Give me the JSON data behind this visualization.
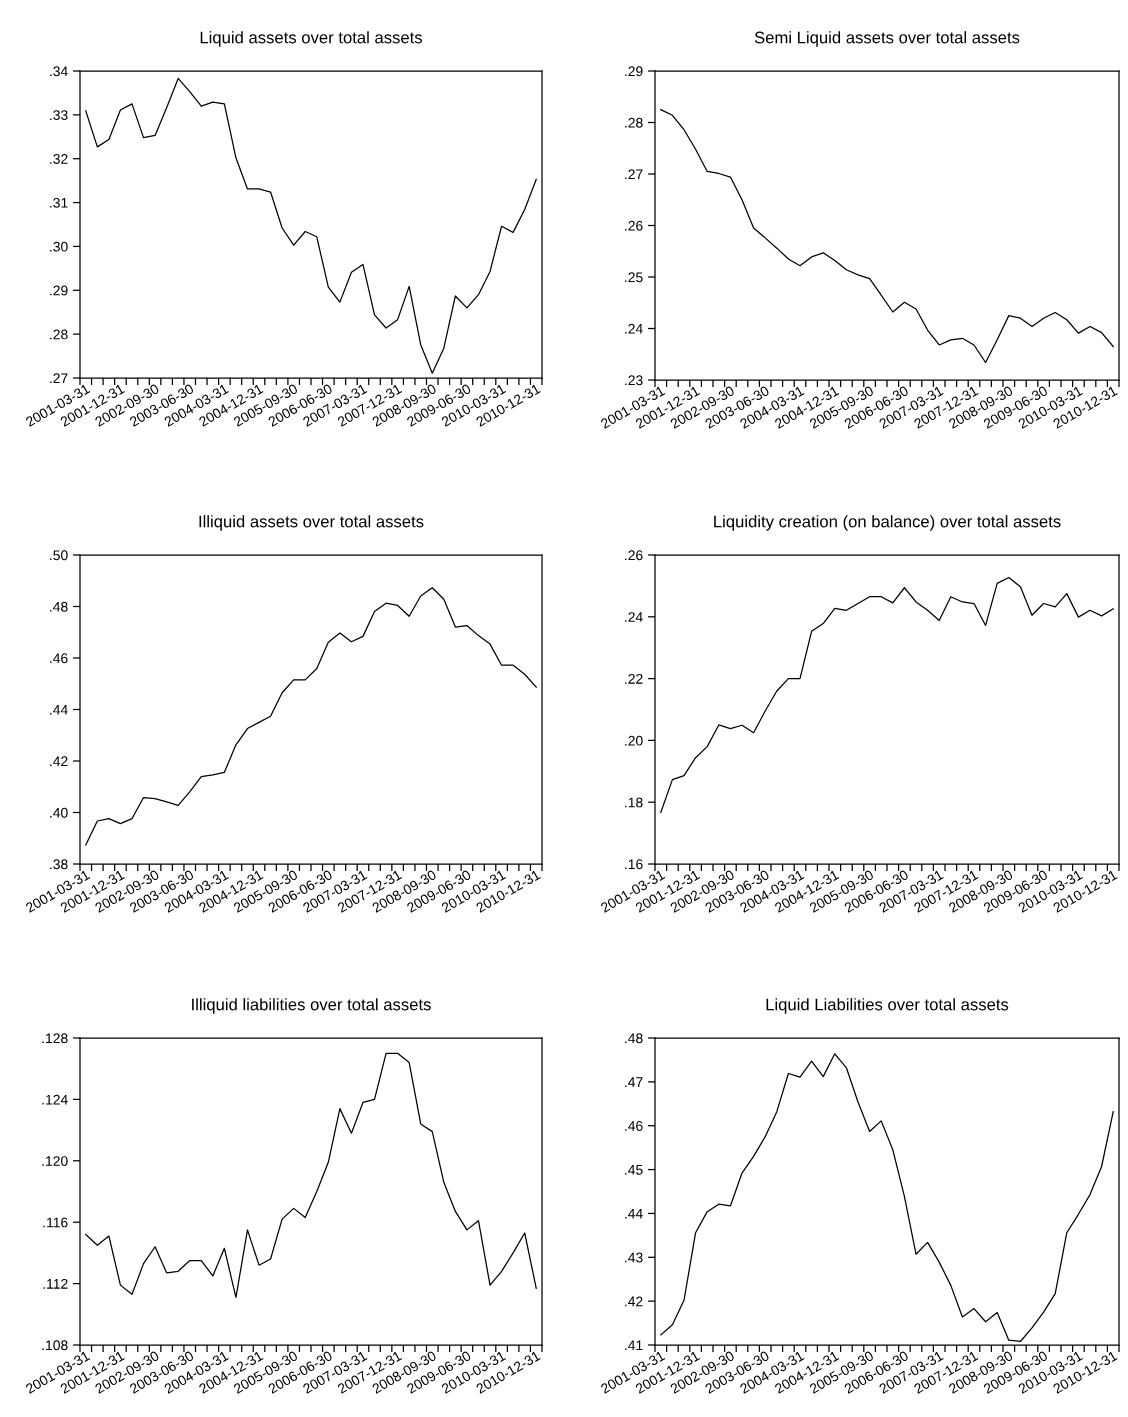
{
  "chart_data": [
    {
      "type": "line",
      "title": "Liquid assets over total assets",
      "categories": [
        "2001-03-31",
        null,
        null,
        "2001-12-31",
        null,
        null,
        "2002-09-30",
        null,
        null,
        "2003-06-30",
        null,
        null,
        "2004-03-31",
        null,
        null,
        "2004-12-31",
        null,
        null,
        "2005-09-30",
        null,
        null,
        "2006-06-30",
        null,
        null,
        "2007-03-31",
        null,
        null,
        "2007-12-31",
        null,
        null,
        "2008-09-30",
        null,
        null,
        "2009-06-30",
        null,
        null,
        "2010-03-31",
        null,
        null,
        "2010-12-31"
      ],
      "series": [
        {
          "color": "#000000",
          "values": [
            0.3309,
            0.3227,
            0.3244,
            0.3311,
            0.3325,
            0.3248,
            0.3253,
            0.3316,
            0.3383,
            0.3353,
            0.332,
            0.3329,
            0.3325,
            0.3202,
            0.3131,
            0.3131,
            0.3124,
            0.3042,
            0.3003,
            0.3034,
            0.3022,
            0.2907,
            0.2873,
            0.2941,
            0.2959,
            0.2844,
            0.2814,
            0.2833,
            0.2909,
            0.2776,
            0.2711,
            0.2768,
            0.2887,
            0.286,
            0.289,
            0.2943,
            0.3046,
            0.3032,
            0.3084,
            0.3153
          ]
        }
      ],
      "ylim": [
        0.27,
        0.34
      ],
      "yticks": [
        {
          "value": 0.27,
          "label": ".27"
        },
        {
          "value": 0.28,
          "label": ".28"
        },
        {
          "value": 0.29,
          "label": ".29"
        },
        {
          "value": 0.3,
          "label": ".30"
        },
        {
          "value": 0.31,
          "label": ".31"
        },
        {
          "value": 0.32,
          "label": ".32"
        },
        {
          "value": 0.33,
          "label": ".33"
        },
        {
          "value": 0.34,
          "label": ".34"
        }
      ],
      "grid": false
    },
    {
      "type": "line",
      "title": "Semi Liquid assets over total assets",
      "categories": [
        "2001-03-31",
        null,
        null,
        "2001-12-31",
        null,
        null,
        "2002-09-30",
        null,
        null,
        "2003-06-30",
        null,
        null,
        "2004-03-31",
        null,
        null,
        "2004-12-31",
        null,
        null,
        "2005-09-30",
        null,
        null,
        "2006-06-30",
        null,
        null,
        "2007-03-31",
        null,
        null,
        "2007-12-31",
        null,
        null,
        "2008-09-30",
        null,
        null,
        "2009-06-30",
        null,
        null,
        "2010-03-31",
        null,
        null,
        "2010-12-31"
      ],
      "series": [
        {
          "color": "#000000",
          "values": [
            0.2825,
            0.2814,
            0.2786,
            0.2748,
            0.2705,
            0.2701,
            0.2694,
            0.265,
            0.2595,
            0.2576,
            0.2556,
            0.2535,
            0.2522,
            0.2539,
            0.2547,
            0.2532,
            0.2514,
            0.2504,
            0.2497,
            0.2465,
            0.2432,
            0.2451,
            0.2438,
            0.2397,
            0.2368,
            0.2378,
            0.2381,
            0.2368,
            0.2334,
            0.2378,
            0.2425,
            0.242,
            0.2404,
            0.242,
            0.2431,
            0.2417,
            0.2391,
            0.2404,
            0.2392,
            0.2365
          ]
        }
      ],
      "ylim": [
        0.23,
        0.29
      ],
      "yticks": [
        {
          "value": 0.23,
          "label": ".23"
        },
        {
          "value": 0.24,
          "label": ".24"
        },
        {
          "value": 0.25,
          "label": ".25"
        },
        {
          "value": 0.26,
          "label": ".26"
        },
        {
          "value": 0.27,
          "label": ".27"
        },
        {
          "value": 0.28,
          "label": ".28"
        },
        {
          "value": 0.29,
          "label": ".29"
        }
      ],
      "grid": false
    },
    {
      "type": "line",
      "title": "Illiquid assets over total assets",
      "categories": [
        "2001-03-31",
        null,
        null,
        "2001-12-31",
        null,
        null,
        "2002-09-30",
        null,
        null,
        "2003-06-30",
        null,
        null,
        "2004-03-31",
        null,
        null,
        "2004-12-31",
        null,
        null,
        "2005-09-30",
        null,
        null,
        "2006-06-30",
        null,
        null,
        "2007-03-31",
        null,
        null,
        "2007-12-31",
        null,
        null,
        "2008-09-30",
        null,
        null,
        "2009-06-30",
        null,
        null,
        "2010-03-31",
        null,
        null,
        "2010-12-31"
      ],
      "series": [
        {
          "color": "#000000",
          "values": [
            0.3874,
            0.3967,
            0.3976,
            0.3957,
            0.3976,
            0.4058,
            0.4054,
            0.4041,
            0.4028,
            0.408,
            0.4139,
            0.4146,
            0.4156,
            0.4263,
            0.4326,
            0.435,
            0.4374,
            0.4465,
            0.4515,
            0.4515,
            0.4559,
            0.4661,
            0.4697,
            0.4663,
            0.4684,
            0.4781,
            0.4813,
            0.4804,
            0.4762,
            0.4841,
            0.4873,
            0.4828,
            0.472,
            0.4726,
            0.4687,
            0.4654,
            0.4572,
            0.4572,
            0.4537,
            0.4487
          ]
        }
      ],
      "ylim": [
        0.38,
        0.5
      ],
      "yticks": [
        {
          "value": 0.38,
          "label": ".38"
        },
        {
          "value": 0.4,
          "label": ".40"
        },
        {
          "value": 0.42,
          "label": ".42"
        },
        {
          "value": 0.44,
          "label": ".44"
        },
        {
          "value": 0.46,
          "label": ".46"
        },
        {
          "value": 0.48,
          "label": ".48"
        },
        {
          "value": 0.5,
          "label": ".50"
        }
      ],
      "grid": false
    },
    {
      "type": "line",
      "title": "Liquidity creation (on balance) over total assets",
      "categories": [
        "2001-03-31",
        null,
        null,
        "2001-12-31",
        null,
        null,
        "2002-09-30",
        null,
        null,
        "2003-06-30",
        null,
        null,
        "2004-03-31",
        null,
        null,
        "2004-12-31",
        null,
        null,
        "2005-09-30",
        null,
        null,
        "2006-06-30",
        null,
        null,
        "2007-03-31",
        null,
        null,
        "2007-12-31",
        null,
        null,
        "2008-09-30",
        null,
        null,
        "2009-06-30",
        null,
        null,
        "2010-03-31",
        null,
        null,
        "2010-12-31"
      ],
      "series": [
        {
          "color": "#000000",
          "values": [
            0.1767,
            0.1873,
            0.1886,
            0.1944,
            0.198,
            0.205,
            0.2038,
            0.2049,
            0.2025,
            0.2095,
            0.216,
            0.22,
            0.22,
            0.2353,
            0.2378,
            0.2427,
            0.2421,
            0.2443,
            0.2465,
            0.2465,
            0.2445,
            0.2494,
            0.2448,
            0.2421,
            0.2388,
            0.2465,
            0.2448,
            0.2443,
            0.2372,
            0.2508,
            0.2527,
            0.2497,
            0.2405,
            0.2443,
            0.2432,
            0.2475,
            0.2399,
            0.2421,
            0.2403,
            0.2426
          ]
        }
      ],
      "ylim": [
        0.16,
        0.26
      ],
      "yticks": [
        {
          "value": 0.16,
          "label": ".16"
        },
        {
          "value": 0.18,
          "label": ".18"
        },
        {
          "value": 0.2,
          "label": ".20"
        },
        {
          "value": 0.22,
          "label": ".22"
        },
        {
          "value": 0.24,
          "label": ".24"
        },
        {
          "value": 0.26,
          "label": ".26"
        }
      ],
      "grid": false
    },
    {
      "type": "line",
      "title": "Illiquid liabilities over total assets",
      "categories": [
        "2001-03-31",
        null,
        null,
        "2001-12-31",
        null,
        null,
        "2002-09-30",
        null,
        null,
        "2003-06-30",
        null,
        null,
        "2004-03-31",
        null,
        null,
        "2004-12-31",
        null,
        null,
        "2005-09-30",
        null,
        null,
        "2006-06-30",
        null,
        null,
        "2007-03-31",
        null,
        null,
        "2007-12-31",
        null,
        null,
        "2008-09-30",
        null,
        null,
        "2009-06-30",
        null,
        null,
        "2010-03-31",
        null,
        null,
        "2010-12-31"
      ],
      "series": [
        {
          "color": "#000000",
          "values": [
            0.1152,
            0.1145,
            0.1151,
            0.1119,
            0.1113,
            0.1133,
            0.1144,
            0.1127,
            0.1128,
            0.1135,
            0.1135,
            0.1125,
            0.1143,
            0.1111,
            0.1155,
            0.1132,
            0.1136,
            0.1162,
            0.1169,
            0.1163,
            0.118,
            0.1199,
            0.1234,
            0.1218,
            0.1238,
            0.124,
            0.127,
            0.127,
            0.1264,
            0.1224,
            0.1219,
            0.1186,
            0.1167,
            0.1155,
            0.1161,
            0.1119,
            0.1128,
            0.114,
            0.1153,
            0.1117
          ]
        }
      ],
      "ylim": [
        0.108,
        0.128
      ],
      "yticks": [
        {
          "value": 0.108,
          "label": ".108"
        },
        {
          "value": 0.112,
          "label": ".112"
        },
        {
          "value": 0.116,
          "label": ".116"
        },
        {
          "value": 0.12,
          "label": ".120"
        },
        {
          "value": 0.124,
          "label": ".124"
        },
        {
          "value": 0.128,
          "label": ".128"
        }
      ],
      "grid": false
    },
    {
      "type": "line",
      "title": "Liquid Liabilities over total assets",
      "categories": [
        "2001-03-31",
        null,
        null,
        "2001-12-31",
        null,
        null,
        "2002-09-30",
        null,
        null,
        "2003-06-30",
        null,
        null,
        "2004-03-31",
        null,
        null,
        "2004-12-31",
        null,
        null,
        "2005-09-30",
        null,
        null,
        "2006-06-30",
        null,
        null,
        "2007-03-31",
        null,
        null,
        "2007-12-31",
        null,
        null,
        "2008-09-30",
        null,
        null,
        "2009-06-30",
        null,
        null,
        "2010-03-31",
        null,
        null,
        "2010-12-31"
      ],
      "series": [
        {
          "color": "#000000",
          "values": [
            0.4123,
            0.4146,
            0.4202,
            0.4356,
            0.4404,
            0.4421,
            0.4417,
            0.4492,
            0.453,
            0.4575,
            0.4632,
            0.4719,
            0.4711,
            0.4747,
            0.4712,
            0.4764,
            0.4732,
            0.4654,
            0.4587,
            0.4611,
            0.4545,
            0.4439,
            0.4307,
            0.4334,
            0.4289,
            0.4236,
            0.4164,
            0.4183,
            0.4153,
            0.4174,
            0.4111,
            0.4108,
            0.4139,
            0.4175,
            0.4217,
            0.4356,
            0.4398,
            0.4443,
            0.4507,
            0.4632
          ]
        }
      ],
      "ylim": [
        0.41,
        0.48
      ],
      "yticks": [
        {
          "value": 0.41,
          "label": ".41"
        },
        {
          "value": 0.42,
          "label": ".42"
        },
        {
          "value": 0.43,
          "label": ".43"
        },
        {
          "value": 0.44,
          "label": ".44"
        },
        {
          "value": 0.45,
          "label": ".45"
        },
        {
          "value": 0.46,
          "label": ".46"
        },
        {
          "value": 0.47,
          "label": ".47"
        },
        {
          "value": 0.48,
          "label": ".48"
        }
      ],
      "grid": false
    }
  ]
}
